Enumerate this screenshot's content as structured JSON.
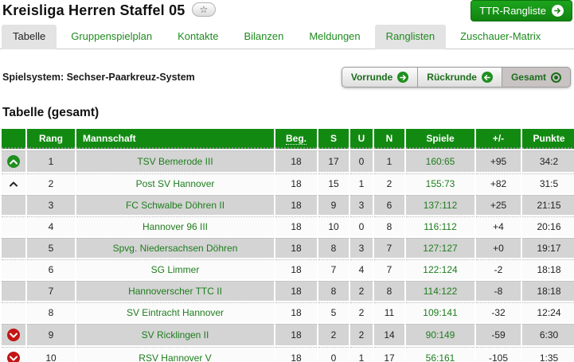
{
  "page": {
    "title": "Kreisliga Herren Staffel 05",
    "star_icon": "☆"
  },
  "ttr_button": {
    "label": "TTR-Rangliste",
    "arrow": "➜"
  },
  "tabs": [
    {
      "label": "Tabelle",
      "state": "active"
    },
    {
      "label": "Gruppenspielplan",
      "state": "normal"
    },
    {
      "label": "Kontakte",
      "state": "normal"
    },
    {
      "label": "Bilanzen",
      "state": "normal"
    },
    {
      "label": "Meldungen",
      "state": "normal"
    },
    {
      "label": "Ranglisten",
      "state": "highlight"
    },
    {
      "label": "Zuschauer-Matrix",
      "state": "normal"
    }
  ],
  "subheader": {
    "spielsystem": "Spielsystem: Sechser-Paarkreuz-System"
  },
  "round_nav": [
    {
      "label": "Vorrunde",
      "icon": "arrow-right-circle",
      "active": false
    },
    {
      "label": "Rückrunde",
      "icon": "arrow-left-circle",
      "active": false
    },
    {
      "label": "Gesamt",
      "icon": "radio-selected",
      "active": true
    }
  ],
  "section": {
    "title": "Tabelle (gesamt)"
  },
  "table": {
    "columns": [
      {
        "key": "move",
        "label": ""
      },
      {
        "key": "rang",
        "label": "Rang"
      },
      {
        "key": "mannschaft",
        "label": "Mannschaft"
      },
      {
        "key": "beg",
        "label": "Beg.",
        "abbr": true
      },
      {
        "key": "s",
        "label": "S"
      },
      {
        "key": "u",
        "label": "U"
      },
      {
        "key": "n",
        "label": "N"
      },
      {
        "key": "spiele",
        "label": "Spiele"
      },
      {
        "key": "diff",
        "label": "+/-"
      },
      {
        "key": "punkte",
        "label": "Punkte"
      }
    ],
    "rows": [
      {
        "move": "up-circle",
        "rang": "1",
        "mannschaft": "TSV Bemerode III",
        "beg": "18",
        "s": "17",
        "u": "0",
        "n": "1",
        "spiele": "160:65",
        "diff": "+95",
        "punkte": "34:2"
      },
      {
        "move": "up-plain",
        "rang": "2",
        "mannschaft": "Post SV Hannover",
        "beg": "18",
        "s": "15",
        "u": "1",
        "n": "2",
        "spiele": "155:73",
        "diff": "+82",
        "punkte": "31:5"
      },
      {
        "move": "none",
        "rang": "3",
        "mannschaft": "FC Schwalbe Döhren II",
        "beg": "18",
        "s": "9",
        "u": "3",
        "n": "6",
        "spiele": "137:112",
        "diff": "+25",
        "punkte": "21:15"
      },
      {
        "move": "none",
        "rang": "4",
        "mannschaft": "Hannover 96 III",
        "beg": "18",
        "s": "10",
        "u": "0",
        "n": "8",
        "spiele": "116:112",
        "diff": "+4",
        "punkte": "20:16"
      },
      {
        "move": "none",
        "rang": "5",
        "mannschaft": "Spvg. Niedersachsen Döhren",
        "beg": "18",
        "s": "8",
        "u": "3",
        "n": "7",
        "spiele": "127:127",
        "diff": "+0",
        "punkte": "19:17"
      },
      {
        "move": "none",
        "rang": "6",
        "mannschaft": "SG Limmer",
        "beg": "18",
        "s": "7",
        "u": "4",
        "n": "7",
        "spiele": "122:124",
        "diff": "-2",
        "punkte": "18:18"
      },
      {
        "move": "none",
        "rang": "7",
        "mannschaft": "Hannoverscher TTC II",
        "beg": "18",
        "s": "8",
        "u": "2",
        "n": "8",
        "spiele": "114:122",
        "diff": "-8",
        "punkte": "18:18"
      },
      {
        "move": "none",
        "rang": "8",
        "mannschaft": "SV Eintracht Hannover",
        "beg": "18",
        "s": "5",
        "u": "2",
        "n": "11",
        "spiele": "109:141",
        "diff": "-32",
        "punkte": "12:24"
      },
      {
        "move": "down-circle",
        "rang": "9",
        "mannschaft": "SV Ricklingen II",
        "beg": "18",
        "s": "2",
        "u": "2",
        "n": "14",
        "spiele": "90:149",
        "diff": "-59",
        "punkte": "6:30"
      },
      {
        "move": "down-circle",
        "rang": "10",
        "mannschaft": "RSV Hannover V",
        "beg": "18",
        "s": "0",
        "u": "1",
        "n": "17",
        "spiele": "56:161",
        "diff": "-105",
        "punkte": "1:35"
      }
    ]
  },
  "colors": {
    "header_green": "#128a12",
    "link_green": "#1e7d1e",
    "button_green": "#118411",
    "promotion_green": "#1f8f1f",
    "relegation_red": "#c41515",
    "row_gray": "#d4d4d4",
    "row_white": "#fbfbfb",
    "tab_active_gray": "#e3e3e3"
  }
}
